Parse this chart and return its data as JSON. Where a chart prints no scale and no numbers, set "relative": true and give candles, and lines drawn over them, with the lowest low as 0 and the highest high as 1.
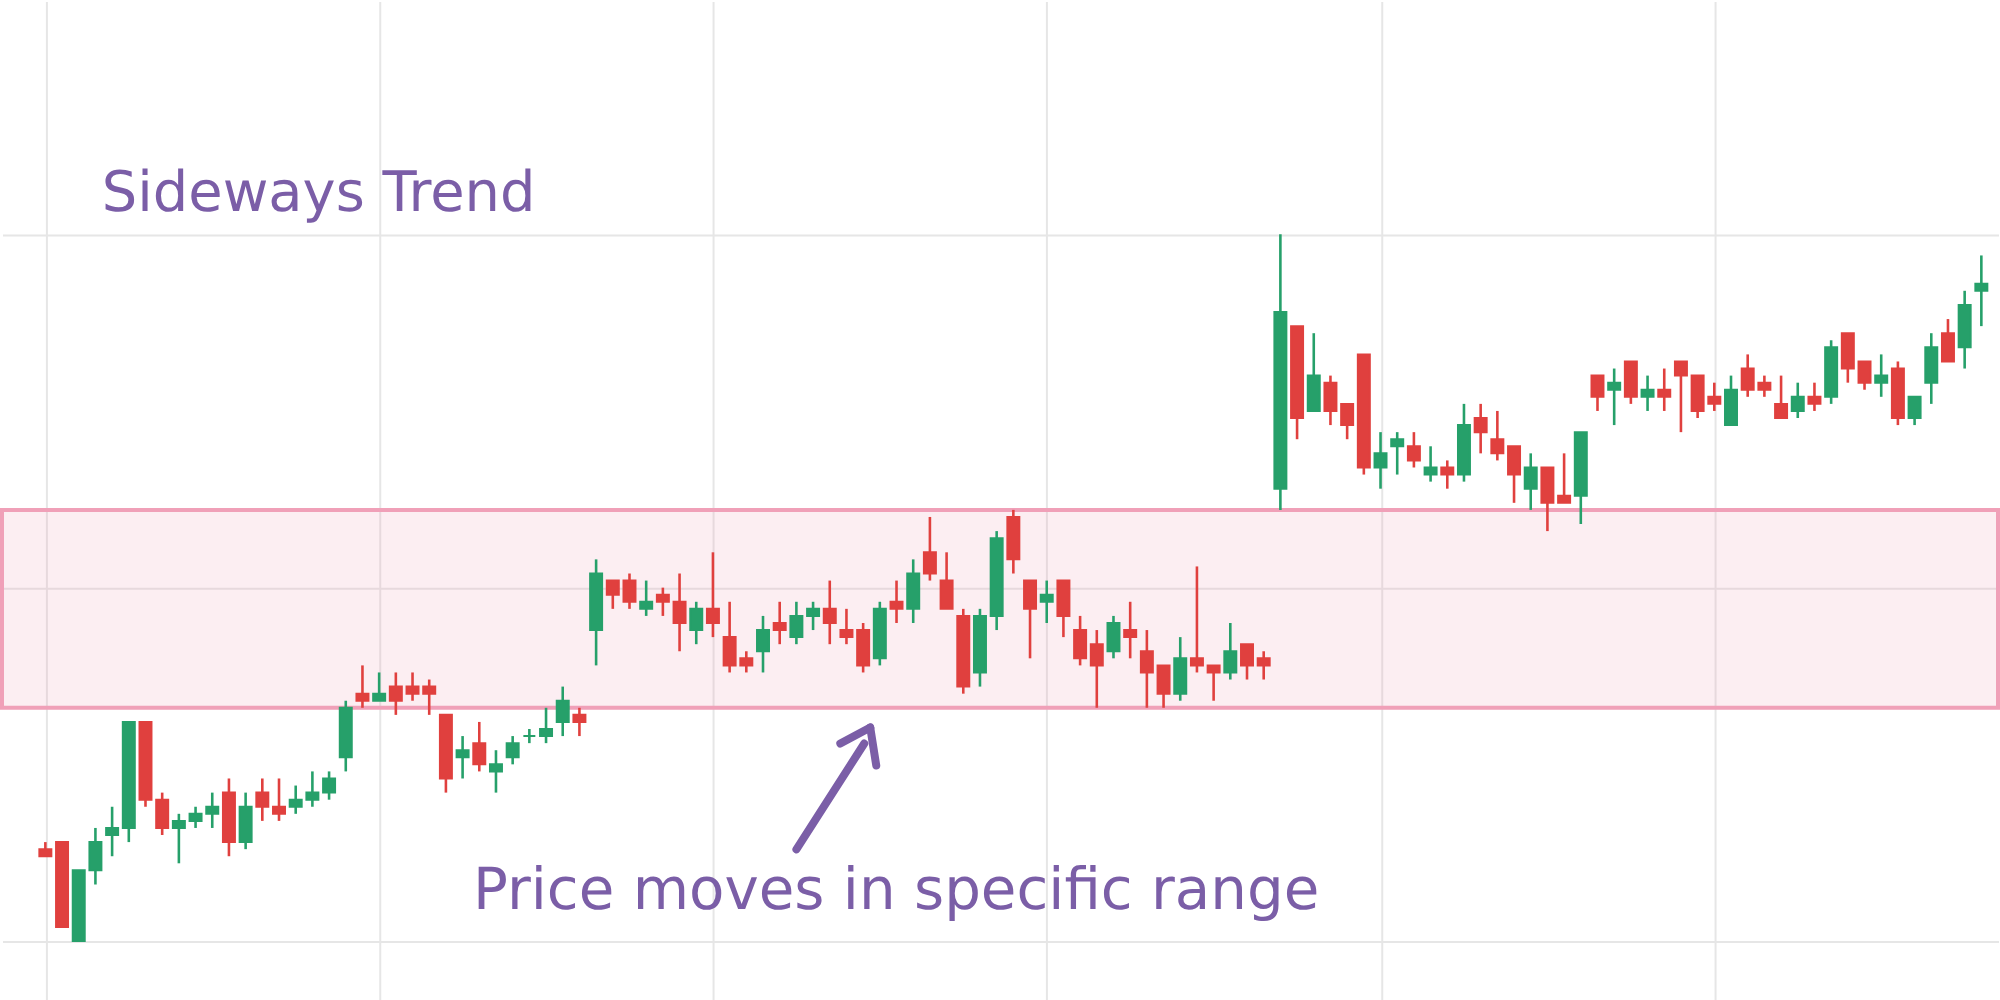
{
  "chart_data": {
    "type": "candlestick",
    "title": "Sideways  Trend",
    "relative": true,
    "grid": true,
    "categories": [
      null,
      null,
      null,
      null,
      null,
      null,
      null,
      null,
      null,
      null,
      null,
      null,
      null,
      null,
      null,
      null,
      null,
      null,
      null,
      null,
      null,
      null,
      null,
      null,
      null,
      null,
      null,
      null,
      null,
      null,
      null,
      null,
      null,
      null,
      null,
      null,
      null,
      null,
      null,
      null,
      null,
      null,
      null,
      null,
      null,
      null,
      null,
      null,
      null,
      null,
      null,
      null,
      null,
      null,
      null,
      null,
      null,
      null,
      null,
      null,
      null,
      null,
      null,
      null,
      null,
      null,
      null,
      null,
      null,
      null,
      null,
      null,
      null,
      null,
      null,
      null,
      null,
      null,
      null,
      null,
      null,
      null,
      null,
      null,
      null,
      null,
      null,
      null,
      null,
      null,
      null,
      null,
      null,
      null,
      null,
      null,
      null,
      null,
      null,
      null,
      null,
      null,
      null,
      null,
      null,
      null,
      null,
      null,
      null,
      null,
      null,
      null,
      null,
      null,
      null,
      null,
      null
    ],
    "ohlc": [
      [
        0.13,
        0.14,
        0.12,
        0.12
      ],
      [
        0.14,
        0.14,
        0.02,
        0.02
      ],
      [
        0.0,
        0.1,
        0.0,
        0.1
      ],
      [
        0.1,
        0.16,
        0.08,
        0.14
      ],
      [
        0.15,
        0.19,
        0.12,
        0.16
      ],
      [
        0.16,
        0.31,
        0.14,
        0.31
      ],
      [
        0.31,
        0.31,
        0.19,
        0.2
      ],
      [
        0.2,
        0.21,
        0.15,
        0.16
      ],
      [
        0.16,
        0.18,
        0.11,
        0.17
      ],
      [
        0.17,
        0.19,
        0.16,
        0.18
      ],
      [
        0.18,
        0.21,
        0.16,
        0.19
      ],
      [
        0.21,
        0.23,
        0.12,
        0.14
      ],
      [
        0.14,
        0.21,
        0.13,
        0.19
      ],
      [
        0.21,
        0.23,
        0.17,
        0.19
      ],
      [
        0.19,
        0.23,
        0.17,
        0.18
      ],
      [
        0.19,
        0.22,
        0.18,
        0.2
      ],
      [
        0.2,
        0.24,
        0.19,
        0.21
      ],
      [
        0.21,
        0.24,
        0.2,
        0.23
      ],
      [
        0.26,
        0.34,
        0.24,
        0.33
      ],
      [
        0.35,
        0.39,
        0.33,
        0.34
      ],
      [
        0.34,
        0.38,
        0.34,
        0.35
      ],
      [
        0.36,
        0.38,
        0.32,
        0.34
      ],
      [
        0.36,
        0.38,
        0.34,
        0.35
      ],
      [
        0.36,
        0.37,
        0.32,
        0.35
      ],
      [
        0.32,
        0.32,
        0.21,
        0.23
      ],
      [
        0.26,
        0.29,
        0.23,
        0.27
      ],
      [
        0.28,
        0.31,
        0.24,
        0.25
      ],
      [
        0.24,
        0.27,
        0.21,
        0.25
      ],
      [
        0.26,
        0.29,
        0.25,
        0.28
      ],
      [
        0.29,
        0.3,
        0.28,
        0.29
      ],
      [
        0.29,
        0.33,
        0.28,
        0.3
      ],
      [
        0.31,
        0.36,
        0.29,
        0.34
      ],
      [
        0.32,
        0.33,
        0.29,
        0.31
      ],
      [
        0.44,
        0.54,
        0.39,
        0.52
      ],
      [
        0.51,
        0.51,
        0.47,
        0.49
      ],
      [
        0.51,
        0.52,
        0.47,
        0.48
      ],
      [
        0.47,
        0.51,
        0.46,
        0.48
      ],
      [
        0.49,
        0.5,
        0.46,
        0.48
      ],
      [
        0.48,
        0.52,
        0.41,
        0.45
      ],
      [
        0.44,
        0.48,
        0.42,
        0.47
      ],
      [
        0.47,
        0.55,
        0.43,
        0.45
      ],
      [
        0.43,
        0.48,
        0.38,
        0.39
      ],
      [
        0.4,
        0.41,
        0.38,
        0.39
      ],
      [
        0.41,
        0.46,
        0.38,
        0.44
      ],
      [
        0.45,
        0.48,
        0.42,
        0.44
      ],
      [
        0.43,
        0.48,
        0.42,
        0.46
      ],
      [
        0.46,
        0.48,
        0.44,
        0.47
      ],
      [
        0.47,
        0.51,
        0.42,
        0.45
      ],
      [
        0.44,
        0.47,
        0.42,
        0.43
      ],
      [
        0.44,
        0.45,
        0.38,
        0.39
      ],
      [
        0.4,
        0.48,
        0.39,
        0.47
      ],
      [
        0.48,
        0.51,
        0.45,
        0.47
      ],
      [
        0.47,
        0.54,
        0.45,
        0.52
      ],
      [
        0.55,
        0.6,
        0.51,
        0.52
      ],
      [
        0.51,
        0.55,
        0.47,
        0.47
      ],
      [
        0.46,
        0.47,
        0.35,
        0.36
      ],
      [
        0.38,
        0.47,
        0.36,
        0.46
      ],
      [
        0.46,
        0.58,
        0.44,
        0.57
      ],
      [
        0.6,
        0.61,
        0.52,
        0.54
      ],
      [
        0.51,
        0.51,
        0.4,
        0.47
      ],
      [
        0.48,
        0.51,
        0.45,
        0.49
      ],
      [
        0.51,
        0.51,
        0.43,
        0.46
      ],
      [
        0.44,
        0.46,
        0.39,
        0.4
      ],
      [
        0.42,
        0.44,
        0.33,
        0.39
      ],
      [
        0.41,
        0.46,
        0.4,
        0.45
      ],
      [
        0.44,
        0.48,
        0.4,
        0.43
      ],
      [
        0.41,
        0.44,
        0.33,
        0.38
      ],
      [
        0.39,
        0.39,
        0.33,
        0.35
      ],
      [
        0.35,
        0.43,
        0.34,
        0.4
      ],
      [
        0.4,
        0.53,
        0.38,
        0.39
      ],
      [
        0.39,
        0.39,
        0.34,
        0.38
      ],
      [
        0.38,
        0.45,
        0.37,
        0.41
      ],
      [
        0.42,
        0.42,
        0.37,
        0.39
      ],
      [
        0.4,
        0.41,
        0.37,
        0.39
      ],
      [
        0.64,
        1.0,
        0.61,
        0.89
      ],
      [
        0.87,
        0.87,
        0.71,
        0.74
      ],
      [
        0.75,
        0.86,
        0.75,
        0.8
      ],
      [
        0.79,
        0.8,
        0.73,
        0.75
      ],
      [
        0.76,
        0.76,
        0.71,
        0.73
      ],
      [
        0.83,
        0.83,
        0.66,
        0.67
      ],
      [
        0.67,
        0.72,
        0.64,
        0.69
      ],
      [
        0.7,
        0.72,
        0.66,
        0.71
      ],
      [
        0.7,
        0.72,
        0.67,
        0.68
      ],
      [
        0.66,
        0.7,
        0.65,
        0.67
      ],
      [
        0.67,
        0.68,
        0.64,
        0.66
      ],
      [
        0.66,
        0.76,
        0.65,
        0.73
      ],
      [
        0.74,
        0.76,
        0.69,
        0.72
      ],
      [
        0.71,
        0.75,
        0.68,
        0.69
      ],
      [
        0.7,
        0.7,
        0.62,
        0.66
      ],
      [
        0.64,
        0.69,
        0.61,
        0.67
      ],
      [
        0.67,
        0.67,
        0.58,
        0.62
      ],
      [
        0.63,
        0.69,
        0.62,
        0.62
      ],
      [
        0.63,
        0.72,
        0.59,
        0.72
      ],
      [
        0.8,
        0.8,
        0.75,
        0.77
      ],
      [
        0.78,
        0.81,
        0.73,
        0.79
      ],
      [
        0.82,
        0.82,
        0.76,
        0.77
      ],
      [
        0.77,
        0.8,
        0.75,
        0.78
      ],
      [
        0.78,
        0.81,
        0.75,
        0.77
      ],
      [
        0.82,
        0.82,
        0.72,
        0.8
      ],
      [
        0.8,
        0.8,
        0.74,
        0.75
      ],
      [
        0.77,
        0.79,
        0.75,
        0.76
      ],
      [
        0.73,
        0.8,
        0.73,
        0.78
      ],
      [
        0.81,
        0.83,
        0.77,
        0.78
      ],
      [
        0.79,
        0.8,
        0.77,
        0.78
      ],
      [
        0.76,
        0.8,
        0.74,
        0.74
      ],
      [
        0.75,
        0.79,
        0.74,
        0.77
      ],
      [
        0.77,
        0.79,
        0.75,
        0.76
      ],
      [
        0.77,
        0.85,
        0.76,
        0.84
      ],
      [
        0.86,
        0.86,
        0.79,
        0.81
      ],
      [
        0.82,
        0.82,
        0.78,
        0.79
      ],
      [
        0.79,
        0.83,
        0.77,
        0.8
      ],
      [
        0.81,
        0.82,
        0.73,
        0.74
      ],
      [
        0.74,
        0.77,
        0.73,
        0.77
      ],
      [
        0.79,
        0.86,
        0.76,
        0.84
      ],
      [
        0.86,
        0.88,
        0.82,
        0.82
      ],
      [
        0.84,
        0.92,
        0.81,
        0.9
      ],
      [
        0.92,
        0.97,
        0.87,
        0.93
      ]
    ],
    "colors": [
      "#e0403e",
      "#e0403e",
      "#26a06a",
      "#26a06a",
      "#26a06a",
      "#26a06a",
      "#e0403e",
      "#e0403e",
      "#26a06a",
      "#26a06a",
      "#26a06a",
      "#e0403e",
      "#26a06a",
      "#e0403e",
      "#e0403e",
      "#26a06a",
      "#26a06a",
      "#26a06a",
      "#26a06a",
      "#e0403e",
      "#26a06a",
      "#e0403e",
      "#e0403e",
      "#e0403e",
      "#e0403e",
      "#26a06a",
      "#e0403e",
      "#26a06a",
      "#26a06a",
      "#26a06a",
      "#26a06a",
      "#26a06a",
      "#e0403e",
      "#26a06a",
      "#e0403e",
      "#e0403e",
      "#26a06a",
      "#e0403e",
      "#e0403e",
      "#26a06a",
      "#e0403e",
      "#e0403e",
      "#e0403e",
      "#26a06a",
      "#e0403e",
      "#26a06a",
      "#26a06a",
      "#e0403e",
      "#e0403e",
      "#e0403e",
      "#26a06a",
      "#e0403e",
      "#26a06a",
      "#e0403e",
      "#e0403e",
      "#e0403e",
      "#26a06a",
      "#26a06a",
      "#e0403e",
      "#e0403e",
      "#26a06a",
      "#e0403e",
      "#e0403e",
      "#e0403e",
      "#26a06a",
      "#e0403e",
      "#e0403e",
      "#e0403e",
      "#26a06a",
      "#e0403e",
      "#e0403e",
      "#26a06a",
      "#e0403e",
      "#e0403e",
      "#26a06a",
      "#e0403e",
      "#26a06a",
      "#e0403e",
      "#e0403e",
      "#e0403e",
      "#26a06a",
      "#26a06a",
      "#e0403e",
      "#26a06a",
      "#e0403e",
      "#26a06a",
      "#e0403e",
      "#e0403e",
      "#e0403e",
      "#26a06a",
      "#e0403e",
      "#e0403e",
      "#26a06a",
      "#e0403e",
      "#26a06a",
      "#e0403e",
      "#26a06a",
      "#e0403e",
      "#e0403e",
      "#e0403e",
      "#e0403e",
      "#26a06a",
      "#e0403e",
      "#e0403e",
      "#e0403e",
      "#26a06a",
      "#e0403e",
      "#26a06a",
      "#e0403e",
      "#e0403e",
      "#26a06a",
      "#e0403e",
      "#26a06a",
      "#26a06a",
      "#e0403e",
      "#26a06a",
      "#26a06a"
    ],
    "bands": [
      {
        "axis": "y",
        "from": 0.33,
        "to": 0.61,
        "color": "#f0a0b8"
      }
    ],
    "annotations": [
      "Price moves in specific range"
    ]
  }
}
